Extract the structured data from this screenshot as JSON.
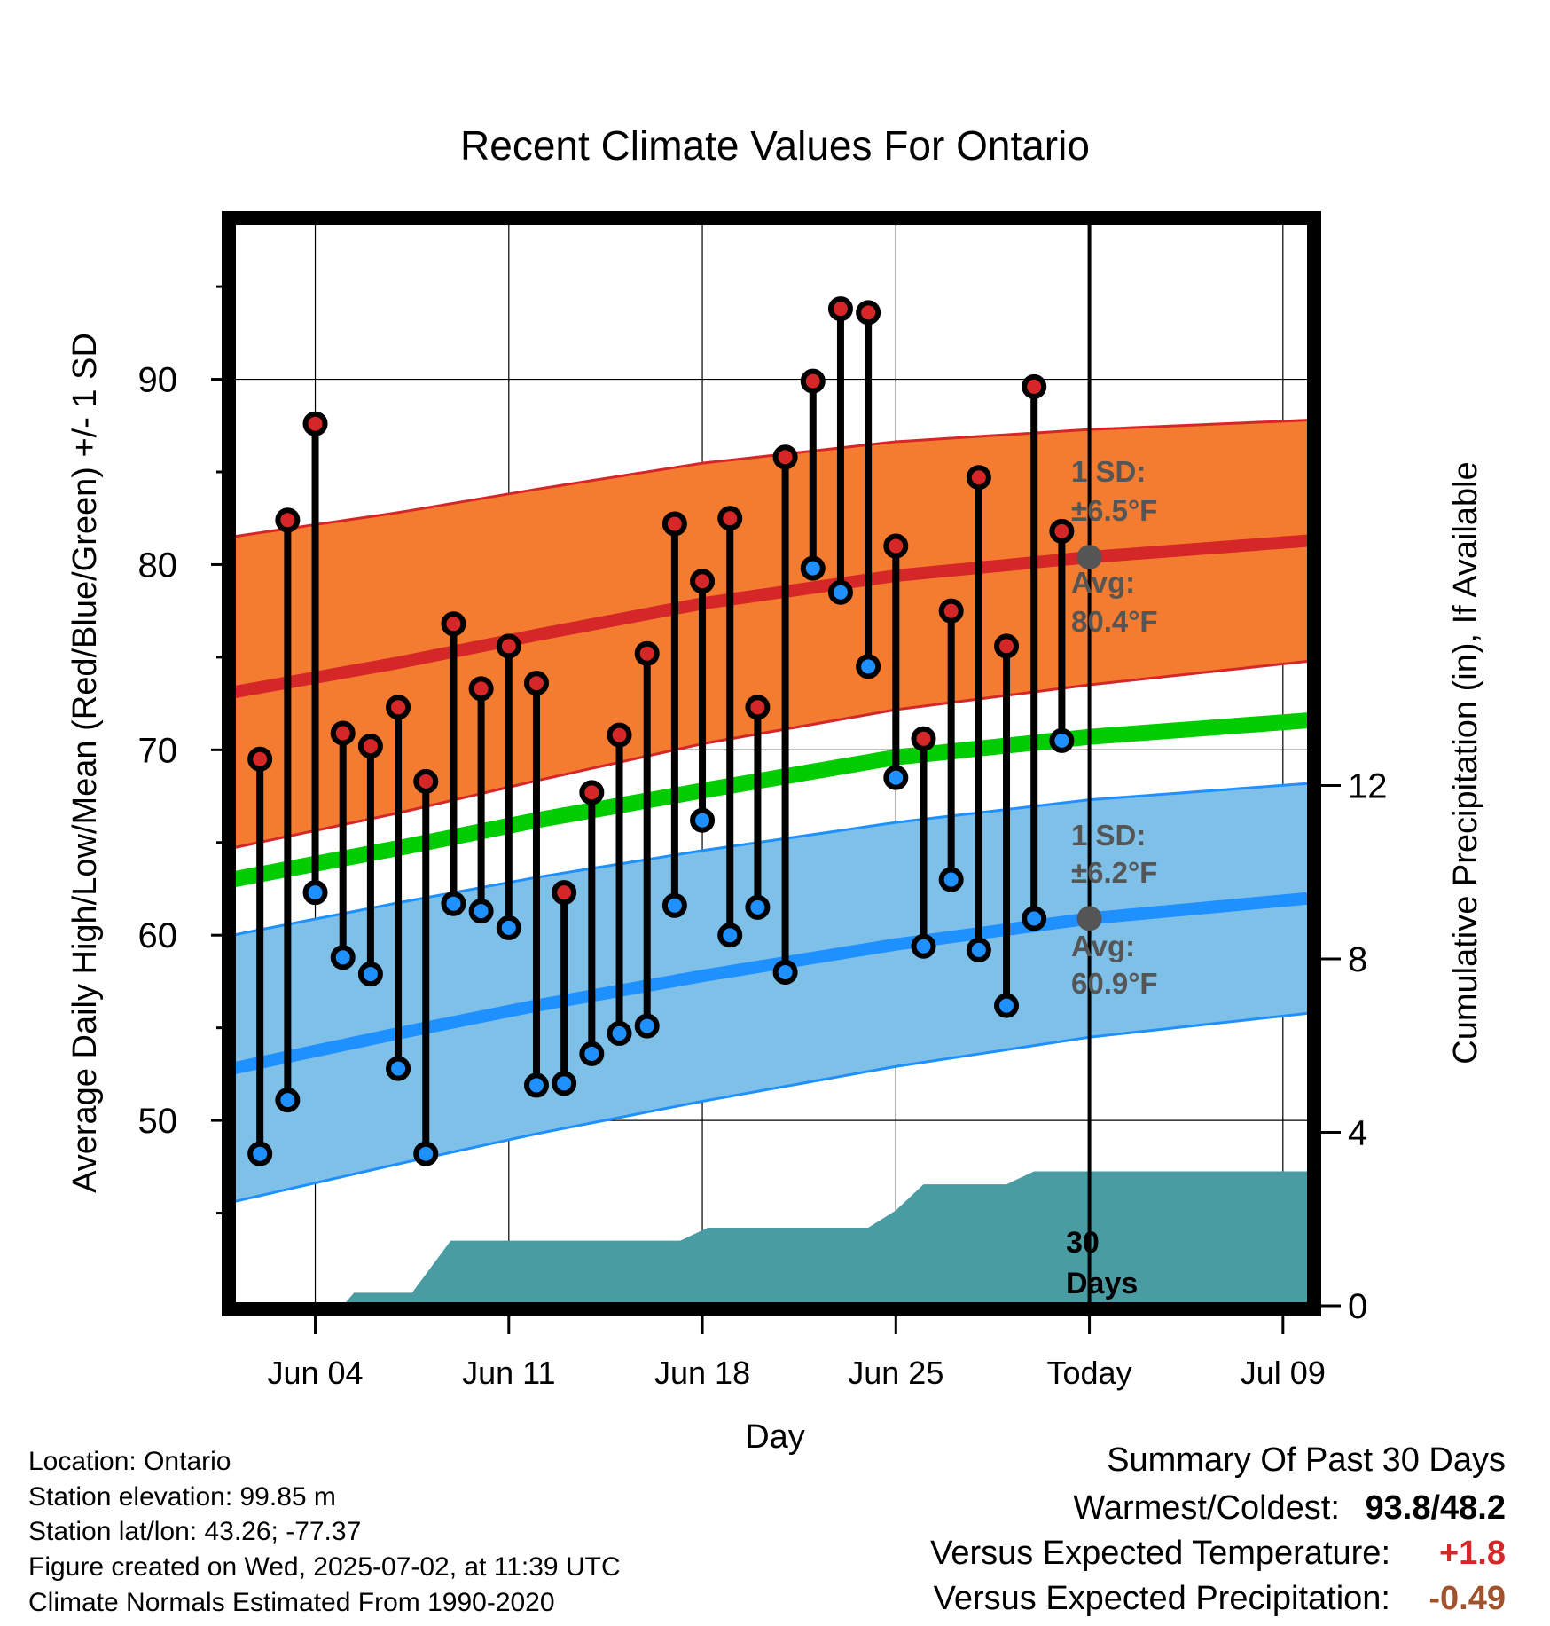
{
  "chart_data": {
    "type": "line",
    "title": "Recent Climate Values For Ontario",
    "xlabel": "Day",
    "ylabel": "Average Daily High/Low/Mean (Red/Blue/Green) +/- 1 SD",
    "y2label": "Cumulative Precipitation (in), If Available",
    "ylim": [
      40,
      98.5
    ],
    "y2lim": [
      0,
      25
    ],
    "xlim": [
      -1,
      38
    ],
    "x_tick_positions": [
      2,
      9,
      16,
      23,
      30,
      37
    ],
    "x_tick_labels": [
      "Jun 04",
      "Jun 11",
      "Jun 18",
      "Jun 25",
      "Today",
      "Jul 09"
    ],
    "y_ticks": [
      50,
      60,
      70,
      80,
      90
    ],
    "y2_ticks": [
      0,
      4,
      8,
      12
    ],
    "today_index": 30,
    "colors": {
      "high": "#d62728",
      "low": "#1e90ff",
      "mean": "#00cc00",
      "high_band": "#f47c30",
      "low_band": "#7fc0e8",
      "precip": "#4a9ca3",
      "marker_edge": "#000000",
      "ref_point": "#555555",
      "annotation": "#555555",
      "positive_anomaly": "#d62728",
      "negative_anomaly": "#a0522d"
    },
    "normals": {
      "days": [
        -1,
        5,
        10,
        16,
        23,
        30,
        38
      ],
      "high_avg": [
        73.1,
        74.7,
        76.2,
        77.9,
        79.4,
        80.4,
        81.3
      ],
      "high_sd": 8.4,
      "high_sd_end": 6.5,
      "low_avg": [
        52.8,
        54.7,
        56.2,
        57.8,
        59.5,
        60.9,
        62.0
      ],
      "low_sd": 7.2,
      "low_sd_end": 6.2,
      "mean_avg": [
        63.0,
        64.7,
        66.2,
        67.8,
        69.6,
        70.7,
        71.6
      ]
    },
    "series": [
      {
        "name": "High",
        "x": [
          0,
          1,
          2,
          3,
          4,
          5,
          6,
          7,
          8,
          9,
          10,
          11,
          12,
          13,
          14,
          15,
          16,
          17,
          18,
          19,
          20,
          21,
          22,
          23,
          24,
          25,
          26,
          27,
          28,
          29
        ],
        "values": [
          69.5,
          82.4,
          87.6,
          70.9,
          70.2,
          72.3,
          68.3,
          76.8,
          73.3,
          75.6,
          73.6,
          62.3,
          67.7,
          70.8,
          75.2,
          82.2,
          79.1,
          82.5,
          72.3,
          85.8,
          89.9,
          93.8,
          93.6,
          81.0,
          70.6,
          77.5,
          84.7,
          75.6,
          89.6,
          81.8
        ]
      },
      {
        "name": "Low",
        "x": [
          0,
          1,
          2,
          3,
          4,
          5,
          6,
          7,
          8,
          9,
          10,
          11,
          12,
          13,
          14,
          15,
          16,
          17,
          18,
          19,
          20,
          21,
          22,
          23,
          24,
          25,
          26,
          27,
          28,
          29
        ],
        "values": [
          48.2,
          51.1,
          62.3,
          58.8,
          57.9,
          52.8,
          48.2,
          61.7,
          61.3,
          60.4,
          51.9,
          52.0,
          53.6,
          54.7,
          55.1,
          61.6,
          66.2,
          60.0,
          61.5,
          58.0,
          79.8,
          78.5,
          74.5,
          68.5,
          59.4,
          63.0,
          59.2,
          56.2,
          60.9,
          70.5
        ]
      }
    ],
    "precip_cumulative": {
      "steps": [
        [
          -1,
          0
        ],
        [
          3,
          0
        ],
        [
          3.4,
          0.3
        ],
        [
          5.5,
          0.3
        ],
        [
          6.9,
          1.5
        ],
        [
          15.2,
          1.5
        ],
        [
          16.2,
          1.8
        ],
        [
          22,
          1.8
        ],
        [
          23,
          2.2
        ],
        [
          24,
          2.8
        ],
        [
          27,
          2.8
        ],
        [
          28,
          3.1
        ],
        [
          38,
          3.1
        ]
      ]
    },
    "annotations": {
      "high_sd_label": "1 SD:",
      "high_sd_value": "±6.5°F",
      "high_avg_label": "Avg:",
      "high_avg_value": "80.4°F",
      "low_sd_label": "1 SD:",
      "low_sd_value": "±6.2°F",
      "low_avg_label": "Avg:",
      "low_avg_value": "60.9°F",
      "days_count": "30",
      "days_label": "Days",
      "today_high_avg": 80.4,
      "today_low_avg": 60.9
    }
  },
  "info": {
    "location": "Location: Ontario",
    "elevation": "Station elevation: 99.85 m",
    "latlon": "Station lat/lon: 43.26; -77.37",
    "created": "Figure created on Wed, 2025-07-02, at 11:39 UTC",
    "normals": "Climate Normals Estimated From 1990-2020"
  },
  "summary": {
    "title": "Summary Of Past 30 Days",
    "warm_cold_label": "Warmest/Coldest:",
    "warm_value": "93.8",
    "slash": "/",
    "cold_value": "48.2",
    "temp_label": "Versus Expected Temperature:",
    "temp_value": "+1.8",
    "precip_label": "Versus Expected Precipitation:",
    "precip_value": "-0.49"
  }
}
